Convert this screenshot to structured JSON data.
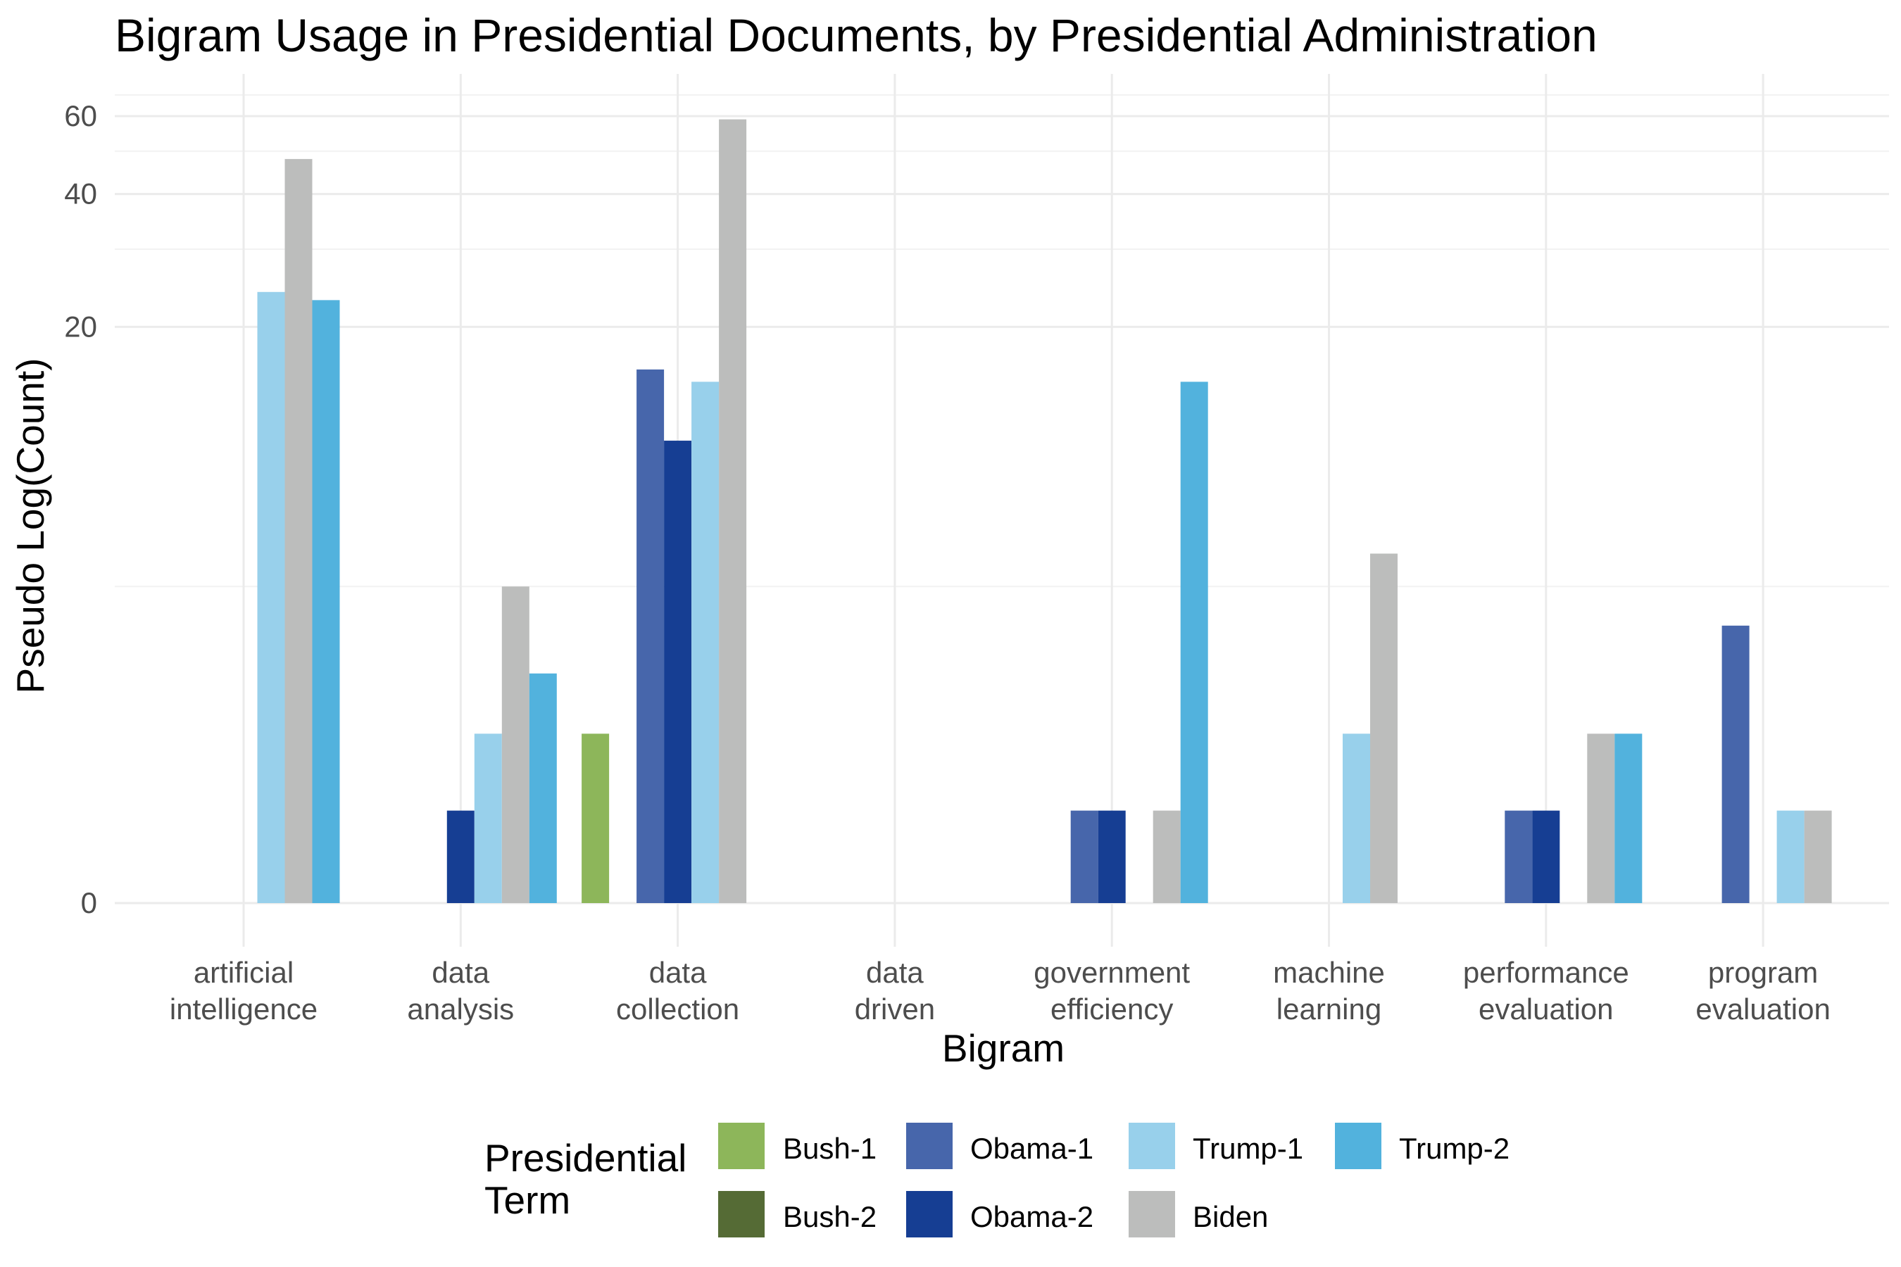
{
  "chart_data": {
    "type": "bar",
    "title": "Bigram Usage in Presidential Documents, by Presidential Administration",
    "xlabel": "Bigram",
    "ylabel": "Pseudo Log(Count)",
    "y_scale": "pseudo-log",
    "y_ticks": [
      0,
      20,
      40,
      60
    ],
    "ylim": [
      0,
      68
    ],
    "grid": true,
    "categories": [
      [
        "artificial",
        "intelligence"
      ],
      [
        "data",
        "analysis"
      ],
      [
        "data",
        "collection"
      ],
      [
        "data",
        "driven"
      ],
      [
        "government",
        "efficiency"
      ],
      [
        "machine",
        "learning"
      ],
      [
        "performance",
        "evaluation"
      ],
      [
        "program",
        "evaluation"
      ]
    ],
    "series": [
      {
        "name": "Bush-1",
        "color": "#8db65a",
        "values": [
          0,
          0,
          2,
          0,
          0,
          0,
          0,
          0
        ]
      },
      {
        "name": "Bush-2",
        "color": "#556b35",
        "values": [
          0,
          0,
          0,
          0,
          0,
          0,
          0,
          0
        ]
      },
      {
        "name": "Obama-1",
        "color": "#4766ab",
        "values": [
          0,
          0,
          16,
          0,
          1,
          0,
          1,
          4
        ]
      },
      {
        "name": "Obama-2",
        "color": "#163e93",
        "values": [
          0,
          1,
          11,
          0,
          1,
          0,
          1,
          0
        ]
      },
      {
        "name": "Trump-1",
        "color": "#98d0eb",
        "values": [
          24,
          2,
          15,
          0,
          0,
          2,
          0,
          1
        ]
      },
      {
        "name": "Biden",
        "color": "#bcbdbc",
        "values": [
          48,
          5,
          59,
          0,
          1,
          6,
          2,
          1
        ]
      },
      {
        "name": "Trump-2",
        "color": "#52b2dd",
        "values": [
          23,
          3,
          0,
          0,
          15,
          0,
          2,
          0
        ]
      }
    ],
    "legend": {
      "title": [
        "Presidential",
        "Term"
      ],
      "position": "bottom",
      "order": [
        "Bush-1",
        "Bush-2",
        "Obama-1",
        "Obama-2",
        "Trump-1",
        "Biden",
        "Trump-2"
      ]
    }
  }
}
